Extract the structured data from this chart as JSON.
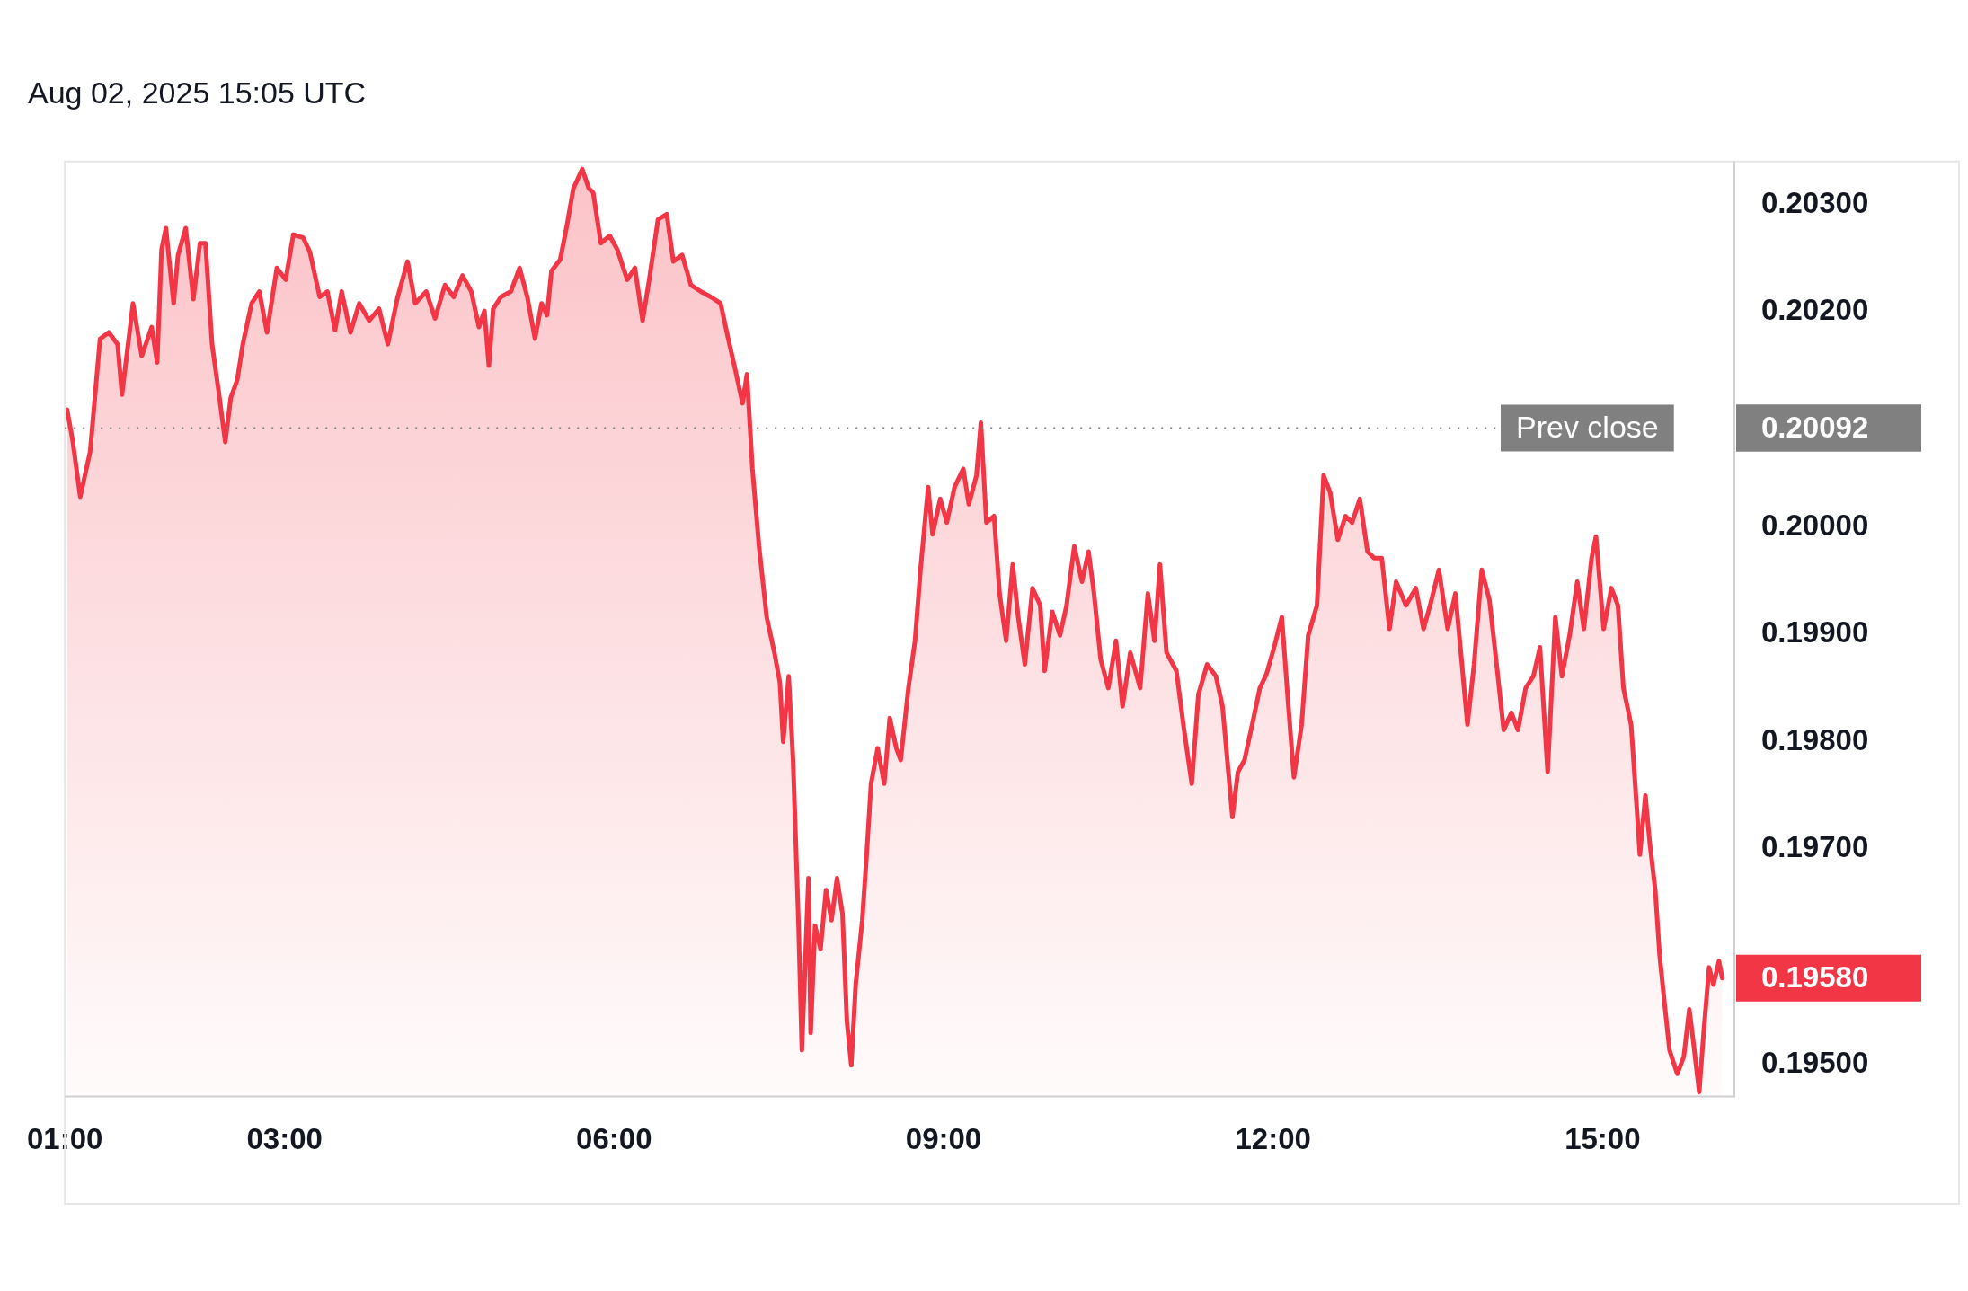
{
  "chart_data": {
    "type": "area",
    "title": "Aug 02, 2025 15:05 UTC",
    "xlim": [
      1.0,
      16.2
    ],
    "ylim": [
      0.1947,
      0.2034
    ],
    "xticks": [
      {
        "value": 1,
        "label": "01:00"
      },
      {
        "value": 3,
        "label": "03:00"
      },
      {
        "value": 6,
        "label": "06:00"
      },
      {
        "value": 9,
        "label": "09:00"
      },
      {
        "value": 12,
        "label": "12:00"
      },
      {
        "value": 15,
        "label": "15:00"
      }
    ],
    "yticks": [
      {
        "value": 0.195,
        "label": "0.19500"
      },
      {
        "value": 0.197,
        "label": "0.19700"
      },
      {
        "value": 0.198,
        "label": "0.19800"
      },
      {
        "value": 0.199,
        "label": "0.19900"
      },
      {
        "value": 0.2,
        "label": "0.20000"
      },
      {
        "value": 0.202,
        "label": "0.20200"
      },
      {
        "value": 0.203,
        "label": "0.20300"
      }
    ],
    "grid": false,
    "legend": false,
    "marker": "none",
    "line_style": "solid",
    "ref_lines": [
      {
        "axis": "y",
        "value": 0.20092,
        "label": "Prev close",
        "line_style": "dotted",
        "color": "#808080"
      }
    ],
    "annotations": [
      "0.20092",
      "0.19580"
    ],
    "series": [
      {
        "color": "#f23645",
        "x": [
          1.02,
          1.07,
          1.14,
          1.23,
          1.32,
          1.4,
          1.48,
          1.52,
          1.62,
          1.7,
          1.79,
          1.84,
          1.88,
          1.92,
          1.99,
          2.03,
          2.1,
          2.17,
          2.23,
          2.28,
          2.34,
          2.4,
          2.46,
          2.51,
          2.57,
          2.62,
          2.7,
          2.77,
          2.84,
          2.93,
          3.01,
          3.08,
          3.17,
          3.23,
          3.32,
          3.39,
          3.46,
          3.52,
          3.6,
          3.68,
          3.77,
          3.86,
          3.94,
          4.03,
          4.12,
          4.19,
          4.29,
          4.37,
          4.46,
          4.54,
          4.62,
          4.7,
          4.77,
          4.82,
          4.86,
          4.9,
          4.97,
          5.06,
          5.14,
          5.21,
          5.28,
          5.34,
          5.39,
          5.43,
          5.51,
          5.57,
          5.63,
          5.71,
          5.77,
          5.81,
          5.88,
          5.96,
          6.03,
          6.12,
          6.19,
          6.26,
          6.32,
          6.4,
          6.48,
          6.54,
          6.62,
          6.7,
          6.79,
          6.88,
          6.97,
          7.04,
          7.1,
          7.17,
          7.21,
          7.26,
          7.32,
          7.39,
          7.46,
          7.51,
          7.54,
          7.59,
          7.63,
          7.68,
          7.71,
          7.77,
          7.79,
          7.83,
          7.88,
          7.93,
          7.98,
          8.03,
          8.08,
          8.12,
          8.16,
          8.2,
          8.26,
          8.3,
          8.34,
          8.4,
          8.46,
          8.51,
          8.57,
          8.61,
          8.68,
          8.74,
          8.79,
          8.86,
          8.9,
          8.97,
          9.03,
          9.1,
          9.18,
          9.23,
          9.3,
          9.34,
          9.39,
          9.46,
          9.51,
          9.57,
          9.63,
          9.68,
          9.74,
          9.81,
          9.88,
          9.92,
          9.99,
          10.06,
          10.12,
          10.19,
          10.26,
          10.32,
          10.37,
          10.43,
          10.5,
          10.57,
          10.63,
          10.7,
          10.79,
          10.86,
          10.92,
          10.97,
          11.03,
          11.12,
          11.19,
          11.26,
          11.32,
          11.4,
          11.48,
          11.54,
          11.63,
          11.68,
          11.74,
          11.81,
          11.88,
          11.94,
          12.01,
          12.08,
          12.14,
          12.19,
          12.26,
          12.32,
          12.4,
          12.46,
          12.52,
          12.59,
          12.66,
          12.72,
          12.79,
          12.86,
          12.92,
          12.99,
          13.06,
          13.12,
          13.21,
          13.3,
          13.37,
          13.43,
          13.51,
          13.59,
          13.66,
          13.72,
          13.77,
          13.83,
          13.9,
          13.97,
          14.03,
          14.1,
          14.17,
          14.23,
          14.3,
          14.37,
          14.43,
          14.5,
          14.57,
          14.63,
          14.7,
          14.77,
          14.83,
          14.9,
          14.94,
          15.01,
          15.08,
          15.14,
          15.19,
          15.26,
          15.3,
          15.34,
          15.39,
          15.43,
          15.48,
          15.52,
          15.57,
          15.61,
          15.68,
          15.74,
          15.79,
          15.83,
          15.88,
          15.92,
          15.97,
          16.01,
          16.06,
          16.09
        ],
        "values": [
          0.20109,
          0.20081,
          0.20028,
          0.2007,
          0.20175,
          0.20181,
          0.2017,
          0.20123,
          0.20208,
          0.20159,
          0.20186,
          0.20153,
          0.20258,
          0.20278,
          0.20208,
          0.20253,
          0.20278,
          0.20212,
          0.20264,
          0.20264,
          0.2017,
          0.20126,
          0.20079,
          0.2012,
          0.20137,
          0.2017,
          0.20208,
          0.20219,
          0.20181,
          0.20241,
          0.2023,
          0.20272,
          0.20269,
          0.20256,
          0.20214,
          0.20219,
          0.20183,
          0.20219,
          0.20181,
          0.20208,
          0.20192,
          0.20203,
          0.2017,
          0.20214,
          0.20247,
          0.20208,
          0.20219,
          0.20194,
          0.20225,
          0.20214,
          0.20234,
          0.20219,
          0.20186,
          0.20201,
          0.2015,
          0.20203,
          0.20214,
          0.20219,
          0.20241,
          0.20214,
          0.20175,
          0.20208,
          0.20197,
          0.20238,
          0.20249,
          0.2028,
          0.20315,
          0.20333,
          0.20315,
          0.20311,
          0.20264,
          0.20271,
          0.20258,
          0.2023,
          0.20241,
          0.20192,
          0.2023,
          0.20286,
          0.20291,
          0.20247,
          0.20253,
          0.20225,
          0.20219,
          0.20214,
          0.20208,
          0.20175,
          0.20148,
          0.20115,
          0.20142,
          0.20054,
          0.19982,
          0.19916,
          0.19883,
          0.19855,
          0.198,
          0.19861,
          0.19783,
          0.19629,
          0.19513,
          0.19673,
          0.19529,
          0.19629,
          0.19607,
          0.19662,
          0.19634,
          0.19673,
          0.1964,
          0.1954,
          0.19499,
          0.19574,
          0.19634,
          0.19695,
          0.19761,
          0.19794,
          0.19761,
          0.19822,
          0.19794,
          0.19783,
          0.1985,
          0.19894,
          0.1996,
          0.20037,
          0.19993,
          0.20026,
          0.20004,
          0.20037,
          0.20054,
          0.20021,
          0.20048,
          0.20097,
          0.20004,
          0.2001,
          0.19938,
          0.19894,
          0.19965,
          0.19916,
          0.19872,
          0.19943,
          0.19927,
          0.19866,
          0.19921,
          0.19899,
          0.19927,
          0.19982,
          0.19949,
          0.19977,
          0.19938,
          0.19877,
          0.1985,
          0.19894,
          0.19833,
          0.19883,
          0.1985,
          0.19938,
          0.19894,
          0.19965,
          0.19883,
          0.19866,
          0.19811,
          0.19761,
          0.19844,
          0.19872,
          0.19861,
          0.19833,
          0.1973,
          0.19772,
          0.19783,
          0.19816,
          0.1985,
          0.19863,
          0.19888,
          0.19916,
          0.19833,
          0.19767,
          0.19816,
          0.19899,
          0.19927,
          0.20048,
          0.20032,
          0.19988,
          0.2001,
          0.20004,
          0.20026,
          0.19977,
          0.19971,
          0.19971,
          0.19905,
          0.19949,
          0.19927,
          0.19943,
          0.19905,
          0.19927,
          0.1996,
          0.19905,
          0.19938,
          0.19872,
          0.19816,
          0.19872,
          0.1996,
          0.19932,
          0.19877,
          0.19811,
          0.19827,
          0.19811,
          0.1985,
          0.19861,
          0.19888,
          0.19772,
          0.19916,
          0.19861,
          0.19899,
          0.19949,
          0.19905,
          0.19971,
          0.19991,
          0.19905,
          0.19943,
          0.19927,
          0.1985,
          0.19816,
          0.19756,
          0.19695,
          0.1975,
          0.19706,
          0.19662,
          0.19601,
          0.19551,
          0.19513,
          0.19491,
          0.19507,
          0.19551,
          0.19518,
          0.19474,
          0.19529,
          0.1959,
          0.19574,
          0.19596,
          0.1958
        ]
      }
    ]
  }
}
